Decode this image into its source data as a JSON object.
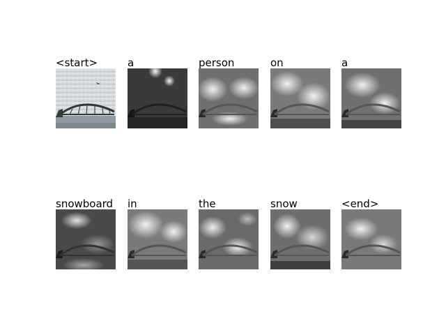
{
  "figure": {
    "panels": [
      {
        "word": "<start>",
        "image": "original-photo-harbour-bridge-with-airplane",
        "style": "color"
      },
      {
        "word": "a",
        "image": "attention-map-bridge",
        "style": "dark"
      },
      {
        "word": "person",
        "image": "attention-map-bridge",
        "style": "gray"
      },
      {
        "word": "on",
        "image": "attention-map-bridge",
        "style": "gray"
      },
      {
        "word": "a",
        "image": "attention-map-bridge",
        "style": "gray"
      },
      {
        "word": "snowboard",
        "image": "attention-map-bridge",
        "style": "dark"
      },
      {
        "word": "in",
        "image": "attention-map-bridge",
        "style": "gray"
      },
      {
        "word": "the",
        "image": "attention-map-bridge",
        "style": "gray"
      },
      {
        "word": "snow",
        "image": "attention-map-bridge",
        "style": "gray"
      },
      {
        "word": "<end>",
        "image": "attention-map-bridge",
        "style": "gray"
      }
    ]
  }
}
